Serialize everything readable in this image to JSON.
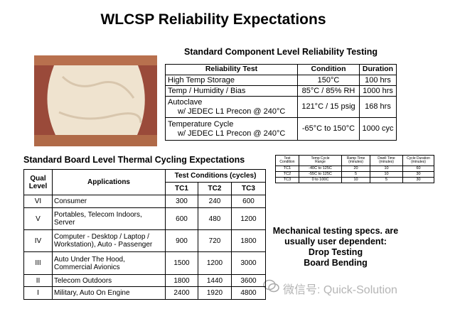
{
  "title": "WLCSP Reliability Expectations",
  "component_table": {
    "title": "Standard Component Level Reliability Testing",
    "header": [
      "Reliability Test",
      "Condition",
      "Duration"
    ],
    "rows": [
      [
        "High Temp Storage",
        "150°C",
        "100 hrs"
      ],
      [
        "Temp / Humidity / Bias",
        "85°C / 85% RH",
        "1000 hrs"
      ],
      [
        [
          "Autoclave",
          "w/ JEDEC L1 Precon @ 240°C"
        ],
        "121°C / 15 psig",
        "168 hrs"
      ],
      [
        [
          "Temperature Cycle",
          "w/ JEDEC L1 Precon @ 240°C"
        ],
        "-65°C to 150°C",
        "1000 cyc"
      ]
    ]
  },
  "board_table": {
    "title": "Standard Board Level Thermal Cycling Expectations",
    "header": {
      "qual_level": [
        "Qual",
        "Level"
      ],
      "applications": "Applications",
      "test_conditions": "Test Conditions (cycles)",
      "tc": [
        "TC1",
        "TC2",
        "TC3"
      ]
    },
    "rows": [
      {
        "level": "VI",
        "application": [
          "Consumer"
        ],
        "cycles": [
          300,
          240,
          600
        ]
      },
      {
        "level": "V",
        "application": [
          "Portables, Telecom Indoors,",
          "Server"
        ],
        "cycles": [
          600,
          480,
          1200
        ]
      },
      {
        "level": "IV",
        "application": [
          "Computer - Desktop / Laptop /",
          "Workstation), Auto - Passenger"
        ],
        "cycles": [
          900,
          720,
          1800
        ]
      },
      {
        "level": "III",
        "application": [
          "Auto Under The Hood,",
          "Commercial Avionics"
        ],
        "cycles": [
          1500,
          1200,
          3000
        ]
      },
      {
        "level": "II",
        "application": [
          "Telecom Outdoors"
        ],
        "cycles": [
          1800,
          1440,
          3600
        ]
      },
      {
        "level": "I",
        "application": [
          "Military, Auto On Engine"
        ],
        "cycles": [
          2400,
          1920,
          4800
        ]
      }
    ]
  },
  "test_condition_table": {
    "header": [
      [
        "Test",
        "Condition"
      ],
      [
        "Temp Cycle",
        "Range"
      ],
      [
        "Ramp Time",
        "(minutes)"
      ],
      [
        "Dwell Time",
        "(minutes)"
      ],
      [
        "Cycle Duration",
        "(minutes)"
      ]
    ],
    "rows": [
      [
        "TC1",
        "-40C to 125C",
        20,
        10,
        60
      ],
      [
        "TC2",
        "-55C to 125C",
        5,
        10,
        30
      ],
      [
        "TC3",
        "0 to 100C",
        10,
        5,
        30
      ]
    ]
  },
  "mechanical_note": [
    "Mechanical testing specs. are",
    "usually user dependent:",
    "Drop Testing",
    "Board Bending"
  ],
  "watermark": "微信号: Quick-Solution"
}
